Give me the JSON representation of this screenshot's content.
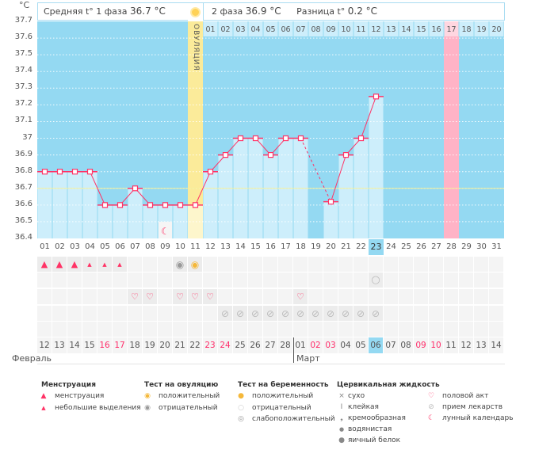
{
  "chart_data": {
    "type": "line",
    "ylabel": "°C",
    "ylim": [
      36.4,
      37.7
    ],
    "yticks": [
      "37.7",
      "37.6",
      "37.5",
      "37.4",
      "37.3",
      "37.2",
      "37.1",
      "37",
      "36.9",
      "36.8",
      "36.7",
      "36.6",
      "36.5",
      "36.4"
    ],
    "grid": true,
    "cycle_days": [
      "01",
      "02",
      "03",
      "04",
      "05",
      "06",
      "07",
      "08",
      "09",
      "10",
      "11",
      "12",
      "13",
      "14",
      "15",
      "16",
      "17",
      "18",
      "19",
      "20",
      "21",
      "22",
      "23",
      "24",
      "25",
      "26",
      "27",
      "28",
      "29",
      "30",
      "31"
    ],
    "post_ovulation_days": [
      "01",
      "02",
      "03",
      "04",
      "05",
      "06",
      "07",
      "08",
      "09",
      "10",
      "11",
      "12",
      "13",
      "14",
      "15",
      "16",
      "17",
      "18",
      "19",
      "20"
    ],
    "values": [
      36.8,
      36.8,
      36.8,
      36.8,
      36.6,
      36.6,
      36.7,
      36.6,
      36.6,
      36.6,
      36.6,
      36.8,
      36.9,
      37.0,
      37.0,
      36.9,
      37.0,
      37.0,
      null,
      36.62,
      36.9,
      37.0,
      37.25,
      null,
      null,
      null,
      null,
      null,
      null,
      null,
      null
    ],
    "ovulation_day": 11,
    "expected_period_day": 28,
    "current_day": 23,
    "phase1_average_line": 36.7,
    "colors": {
      "line": "#ff3366",
      "bg": "#94d9f2",
      "bar": "#cdeefb",
      "ovulation": "#fbeb9a",
      "period": "#ffb3c6"
    }
  },
  "header": {
    "phase1_label": "Средняя t° 1 фаза",
    "phase1_value": "36.7 °C",
    "phase2_label": "2 фаза",
    "phase2_value": "36.9 °C",
    "diff_label": "Разница t°",
    "diff_value": "0.2 °C",
    "ovulation_label": "ОВУЛЯЦИЯ"
  },
  "lunar_day": 9,
  "rows": {
    "menstruation": {
      "heavy": [
        1,
        2,
        3
      ],
      "light": [
        4,
        5,
        6
      ]
    },
    "ovulation_test": {
      "negative": [
        10
      ],
      "positive": [
        11
      ]
    },
    "pregnancy_test": {
      "negative": [
        23
      ]
    },
    "intercourse": [
      7,
      8,
      10,
      11,
      12,
      18
    ],
    "medication": [
      13,
      14,
      15,
      16,
      17,
      18,
      19,
      20,
      21,
      22,
      23
    ]
  },
  "calendar": {
    "dates": [
      "12",
      "13",
      "14",
      "15",
      "16",
      "17",
      "18",
      "19",
      "20",
      "21",
      "22",
      "23",
      "24",
      "25",
      "26",
      "27",
      "28",
      "01",
      "02",
      "03",
      "04",
      "05",
      "06",
      "07",
      "08",
      "09",
      "10",
      "11",
      "12",
      "13",
      "14"
    ],
    "weekend_index": [
      4,
      5,
      11,
      12,
      18,
      19,
      25,
      26
    ],
    "today_index": 22,
    "month1": "Февраль",
    "month2": "Март",
    "month2_start_index": 17
  },
  "legend": {
    "menstruation": {
      "title": "Менструация",
      "items": [
        "менструация",
        "небольшие выделения"
      ]
    },
    "ovulation_test": {
      "title": "Тест на овуляцию",
      "items": [
        "положительный",
        "отрицательный"
      ]
    },
    "pregnancy_test": {
      "title": "Тест на беременность",
      "items": [
        "положительный",
        "отрицательный",
        "слабоположительный"
      ]
    },
    "cervical": {
      "title": "Цервикальная жидкость",
      "items": [
        "сухо",
        "клейкая",
        "кремообразная",
        "водянистая",
        "яичный белок"
      ]
    },
    "other": {
      "items": [
        "половой акт",
        "прием лекарств",
        "лунный календарь"
      ]
    }
  }
}
